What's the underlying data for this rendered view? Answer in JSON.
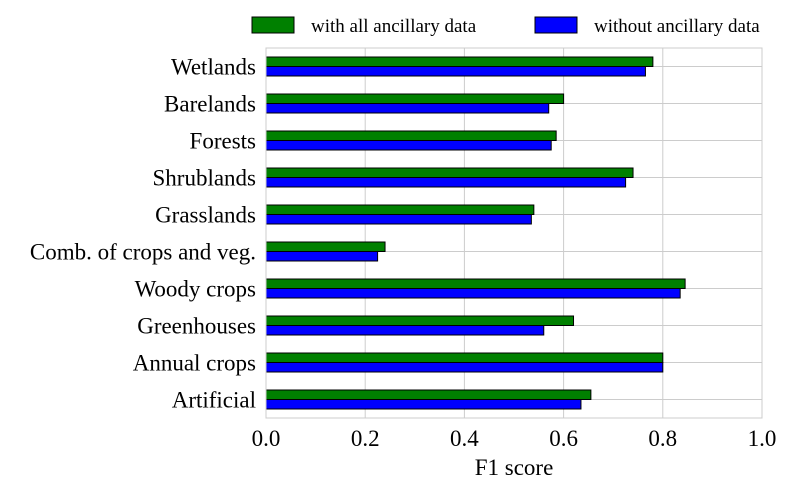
{
  "chart_data": {
    "type": "bar",
    "orientation": "horizontal",
    "categories": [
      "Artificial",
      "Annual crops",
      "Greenhouses",
      "Woody crops",
      "Comb. of crops and veg.",
      "Grasslands",
      "Shrublands",
      "Forests",
      "Barelands",
      "Wetlands"
    ],
    "series": [
      {
        "name": "with all ancillary data",
        "color": "#008000",
        "values": [
          0.655,
          0.8,
          0.62,
          0.845,
          0.24,
          0.54,
          0.74,
          0.585,
          0.6,
          0.78
        ]
      },
      {
        "name": "without ancillary data",
        "color": "#0000ff",
        "values": [
          0.635,
          0.8,
          0.56,
          0.835,
          0.225,
          0.535,
          0.725,
          0.575,
          0.57,
          0.765
        ]
      }
    ],
    "xlabel": "F1 score",
    "ylabel": "",
    "xlim": [
      0.0,
      1.0
    ],
    "xticks": [
      "0.0",
      "0.2",
      "0.4",
      "0.6",
      "0.8",
      "1.0"
    ],
    "grid": true,
    "legend_position": "top, outside plot"
  }
}
